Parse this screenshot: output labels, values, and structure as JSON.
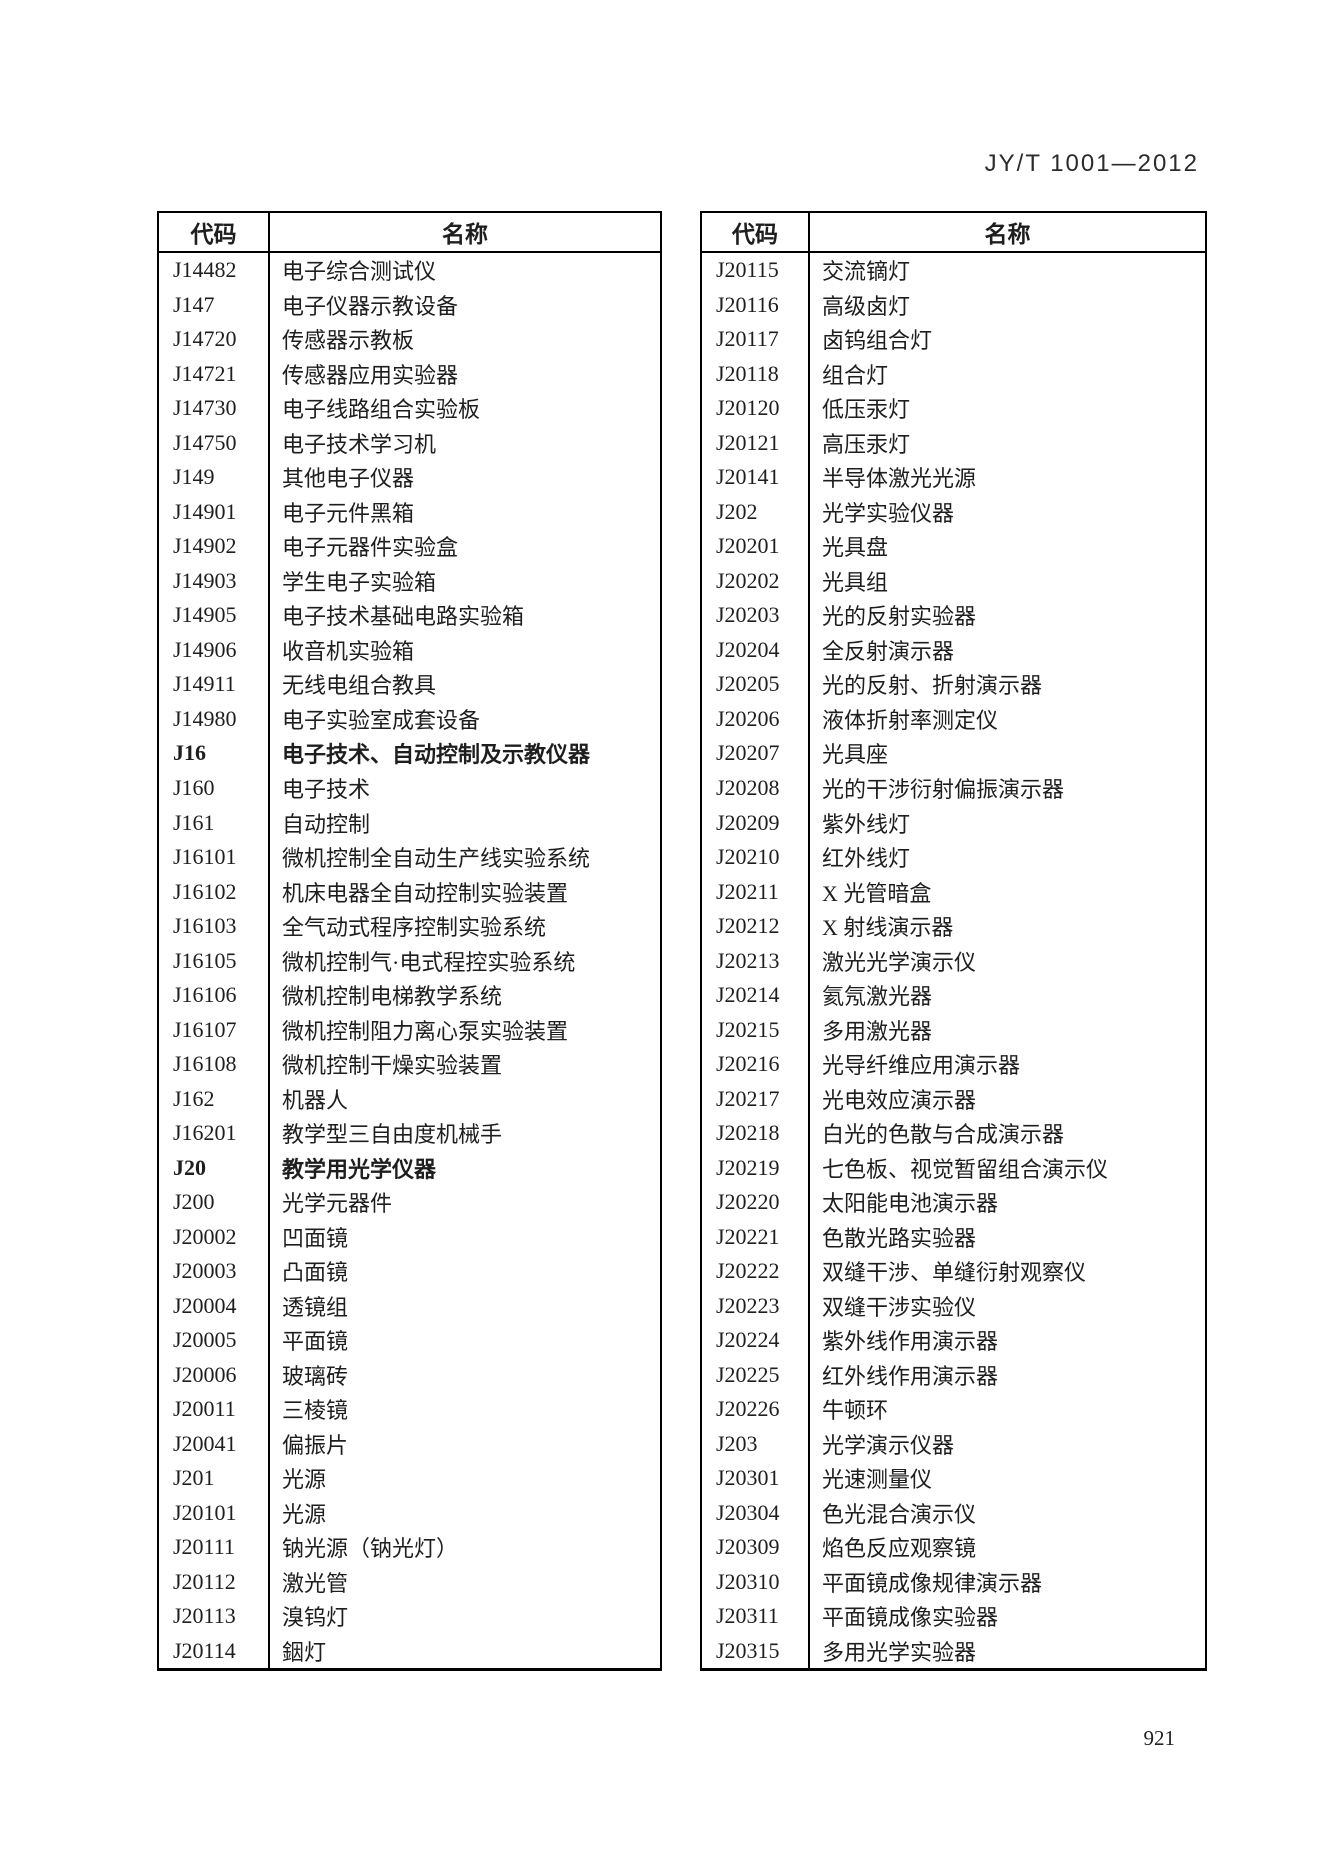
{
  "header": {
    "doc_number": "JY/T 1001—2012"
  },
  "footer": {
    "page_number": "921"
  },
  "table_headers": {
    "code": "代码",
    "name": "名称"
  },
  "left_table": {
    "rows": [
      {
        "code": "J14482",
        "name": "电子综合测试仪"
      },
      {
        "code": "J147",
        "name": "电子仪器示教设备"
      },
      {
        "code": "J14720",
        "name": "传感器示教板"
      },
      {
        "code": "J14721",
        "name": "传感器应用实验器"
      },
      {
        "code": "J14730",
        "name": "电子线路组合实验板"
      },
      {
        "code": "J14750",
        "name": "电子技术学习机"
      },
      {
        "code": "J149",
        "name": "其他电子仪器"
      },
      {
        "code": "J14901",
        "name": "电子元件黑箱"
      },
      {
        "code": "J14902",
        "name": "电子元器件实验盒"
      },
      {
        "code": "J14903",
        "name": "学生电子实验箱"
      },
      {
        "code": "J14905",
        "name": "电子技术基础电路实验箱"
      },
      {
        "code": "J14906",
        "name": "收音机实验箱"
      },
      {
        "code": "J14911",
        "name": "无线电组合教具"
      },
      {
        "code": "J14980",
        "name": "电子实验室成套设备"
      },
      {
        "code": "J16",
        "name": "电子技术、自动控制及示教仪器",
        "bold": true
      },
      {
        "code": "J160",
        "name": "电子技术"
      },
      {
        "code": "J161",
        "name": "自动控制"
      },
      {
        "code": "J16101",
        "name": "微机控制全自动生产线实验系统"
      },
      {
        "code": "J16102",
        "name": "机床电器全自动控制实验装置"
      },
      {
        "code": "J16103",
        "name": "全气动式程序控制实验系统"
      },
      {
        "code": "J16105",
        "name": "微机控制气·电式程控实验系统"
      },
      {
        "code": "J16106",
        "name": "微机控制电梯教学系统"
      },
      {
        "code": "J16107",
        "name": "微机控制阻力离心泵实验装置"
      },
      {
        "code": "J16108",
        "name": "微机控制干燥实验装置"
      },
      {
        "code": "J162",
        "name": "机器人"
      },
      {
        "code": "J16201",
        "name": "教学型三自由度机械手"
      },
      {
        "code": "J20",
        "name": "教学用光学仪器",
        "bold": true
      },
      {
        "code": "J200",
        "name": "光学元器件"
      },
      {
        "code": "J20002",
        "name": "凹面镜"
      },
      {
        "code": "J20003",
        "name": "凸面镜"
      },
      {
        "code": "J20004",
        "name": "透镜组"
      },
      {
        "code": "J20005",
        "name": "平面镜"
      },
      {
        "code": "J20006",
        "name": "玻璃砖"
      },
      {
        "code": "J20011",
        "name": "三棱镜"
      },
      {
        "code": "J20041",
        "name": "偏振片"
      },
      {
        "code": "J201",
        "name": "光源"
      },
      {
        "code": "J20101",
        "name": "光源"
      },
      {
        "code": "J20111",
        "name": "钠光源（钠光灯）"
      },
      {
        "code": "J20112",
        "name": "激光管"
      },
      {
        "code": "J20113",
        "name": "溴钨灯"
      },
      {
        "code": "J20114",
        "name": "銦灯"
      }
    ]
  },
  "right_table": {
    "rows": [
      {
        "code": "J20115",
        "name": "交流镝灯"
      },
      {
        "code": "J20116",
        "name": "高级卤灯"
      },
      {
        "code": "J20117",
        "name": "卤钨组合灯"
      },
      {
        "code": "J20118",
        "name": "组合灯"
      },
      {
        "code": "J20120",
        "name": "低压汞灯"
      },
      {
        "code": "J20121",
        "name": "高压汞灯"
      },
      {
        "code": "J20141",
        "name": "半导体激光光源"
      },
      {
        "code": "J202",
        "name": "光学实验仪器"
      },
      {
        "code": "J20201",
        "name": "光具盘"
      },
      {
        "code": "J20202",
        "name": "光具组"
      },
      {
        "code": "J20203",
        "name": "光的反射实验器"
      },
      {
        "code": "J20204",
        "name": "全反射演示器"
      },
      {
        "code": "J20205",
        "name": "光的反射、折射演示器"
      },
      {
        "code": "J20206",
        "name": "液体折射率测定仪"
      },
      {
        "code": "J20207",
        "name": "光具座"
      },
      {
        "code": "J20208",
        "name": "光的干涉衍射偏振演示器"
      },
      {
        "code": "J20209",
        "name": "紫外线灯"
      },
      {
        "code": "J20210",
        "name": "红外线灯"
      },
      {
        "code": "J20211",
        "name": "X 光管暗盒"
      },
      {
        "code": "J20212",
        "name": "X 射线演示器"
      },
      {
        "code": "J20213",
        "name": "激光光学演示仪"
      },
      {
        "code": "J20214",
        "name": "氦氖激光器"
      },
      {
        "code": "J20215",
        "name": "多用激光器"
      },
      {
        "code": "J20216",
        "name": "光导纤维应用演示器"
      },
      {
        "code": "J20217",
        "name": "光电效应演示器"
      },
      {
        "code": "J20218",
        "name": "白光的色散与合成演示器"
      },
      {
        "code": "J20219",
        "name": "七色板、视觉暂留组合演示仪"
      },
      {
        "code": "J20220",
        "name": "太阳能电池演示器"
      },
      {
        "code": "J20221",
        "name": "色散光路实验器"
      },
      {
        "code": "J20222",
        "name": "双缝干涉、单缝衍射观察仪"
      },
      {
        "code": "J20223",
        "name": "双缝干涉实验仪"
      },
      {
        "code": "J20224",
        "name": "紫外线作用演示器"
      },
      {
        "code": "J20225",
        "name": "红外线作用演示器"
      },
      {
        "code": "J20226",
        "name": "牛顿环"
      },
      {
        "code": "J203",
        "name": "光学演示仪器"
      },
      {
        "code": "J20301",
        "name": "光速测量仪"
      },
      {
        "code": "J20304",
        "name": "色光混合演示仪"
      },
      {
        "code": "J20309",
        "name": "焰色反应观察镜"
      },
      {
        "code": "J20310",
        "name": "平面镜成像规律演示器"
      },
      {
        "code": "J20311",
        "name": "平面镜成像实验器"
      },
      {
        "code": "J20315",
        "name": "多用光学实验器"
      }
    ]
  }
}
